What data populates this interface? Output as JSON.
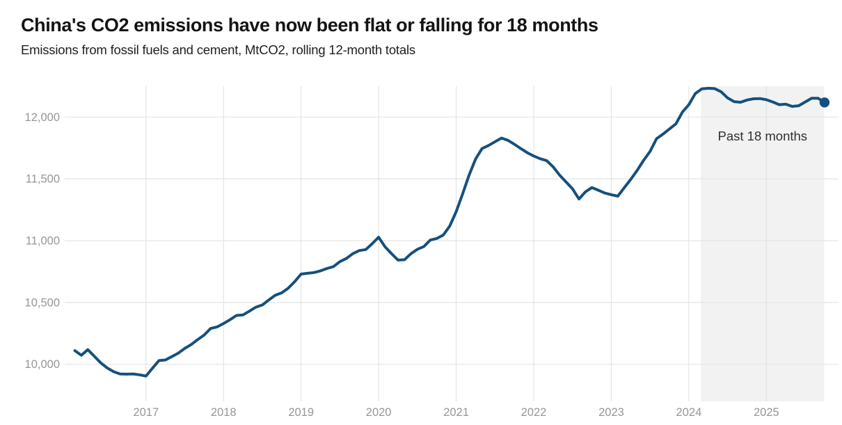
{
  "chart_data": {
    "type": "line",
    "title": "China's CO2 emissions have now been flat or falling for 18 months",
    "subtitle": "Emissions from fossil fuels and cement, MtCO2, rolling 12-month totals",
    "ylabel": "",
    "xlabel": "",
    "grid": "both",
    "legend_position": "none",
    "xlim": [
      2015.97,
      2025.93
    ],
    "ylim": [
      9700,
      12255
    ],
    "yticks": {
      "values": [
        10000,
        10500,
        11000,
        11500,
        12000
      ],
      "labels": [
        "10,000",
        "10,500",
        "11,000",
        "11,500",
        "12,000"
      ]
    },
    "xticks": {
      "values": [
        2017,
        2018,
        2019,
        2020,
        2021,
        2022,
        2023,
        2024,
        2025
      ],
      "labels": [
        "2017",
        "2018",
        "2019",
        "2020",
        "2021",
        "2022",
        "2023",
        "2024",
        "2025"
      ]
    },
    "series": [
      {
        "name": "Emissions from fossil fuels and cement (MtCO2, rolling 12-month totals)",
        "start_month": "2016-01",
        "end_month": "2025-09",
        "frequency": "monthly",
        "values": [
          10110,
          10073,
          10118,
          10065,
          10011,
          9970,
          9940,
          9922,
          9920,
          9922,
          9915,
          9905,
          9968,
          10030,
          10035,
          10062,
          10090,
          10128,
          10160,
          10200,
          10237,
          10290,
          10302,
          10330,
          10360,
          10395,
          10399,
          10430,
          10462,
          10480,
          10520,
          10558,
          10578,
          10615,
          10668,
          10730,
          10736,
          10742,
          10756,
          10775,
          10790,
          10830,
          10856,
          10895,
          10920,
          10928,
          10975,
          11028,
          10950,
          10895,
          10843,
          10846,
          10895,
          10930,
          10953,
          11005,
          11018,
          11045,
          11118,
          11235,
          11380,
          11530,
          11660,
          11745,
          11770,
          11800,
          11830,
          11812,
          11780,
          11745,
          11712,
          11685,
          11663,
          11648,
          11597,
          11530,
          11475,
          11420,
          11337,
          11395,
          11430,
          11408,
          11385,
          11372,
          11360,
          11428,
          11495,
          11568,
          11650,
          11722,
          11825,
          11862,
          11904,
          11945,
          12040,
          12100,
          12190,
          12228,
          12233,
          12230,
          12205,
          12155,
          12125,
          12120,
          12138,
          12148,
          12150,
          12140,
          12122,
          12100,
          12105,
          12086,
          12092,
          12122,
          12152,
          12152,
          12118
        ]
      }
    ],
    "end_marker": true,
    "last_value": 12118,
    "annotation": {
      "label": "Past 18 months",
      "x_from": 2024.155,
      "x_to": 2025.745
    },
    "colors": {
      "line": "#16507c",
      "end_marker": "#16507c",
      "grid": "#e4e4e4",
      "highlight_bg": "#f2f2f2",
      "axis_text": "#969696",
      "annotation_text": "#303030"
    }
  }
}
